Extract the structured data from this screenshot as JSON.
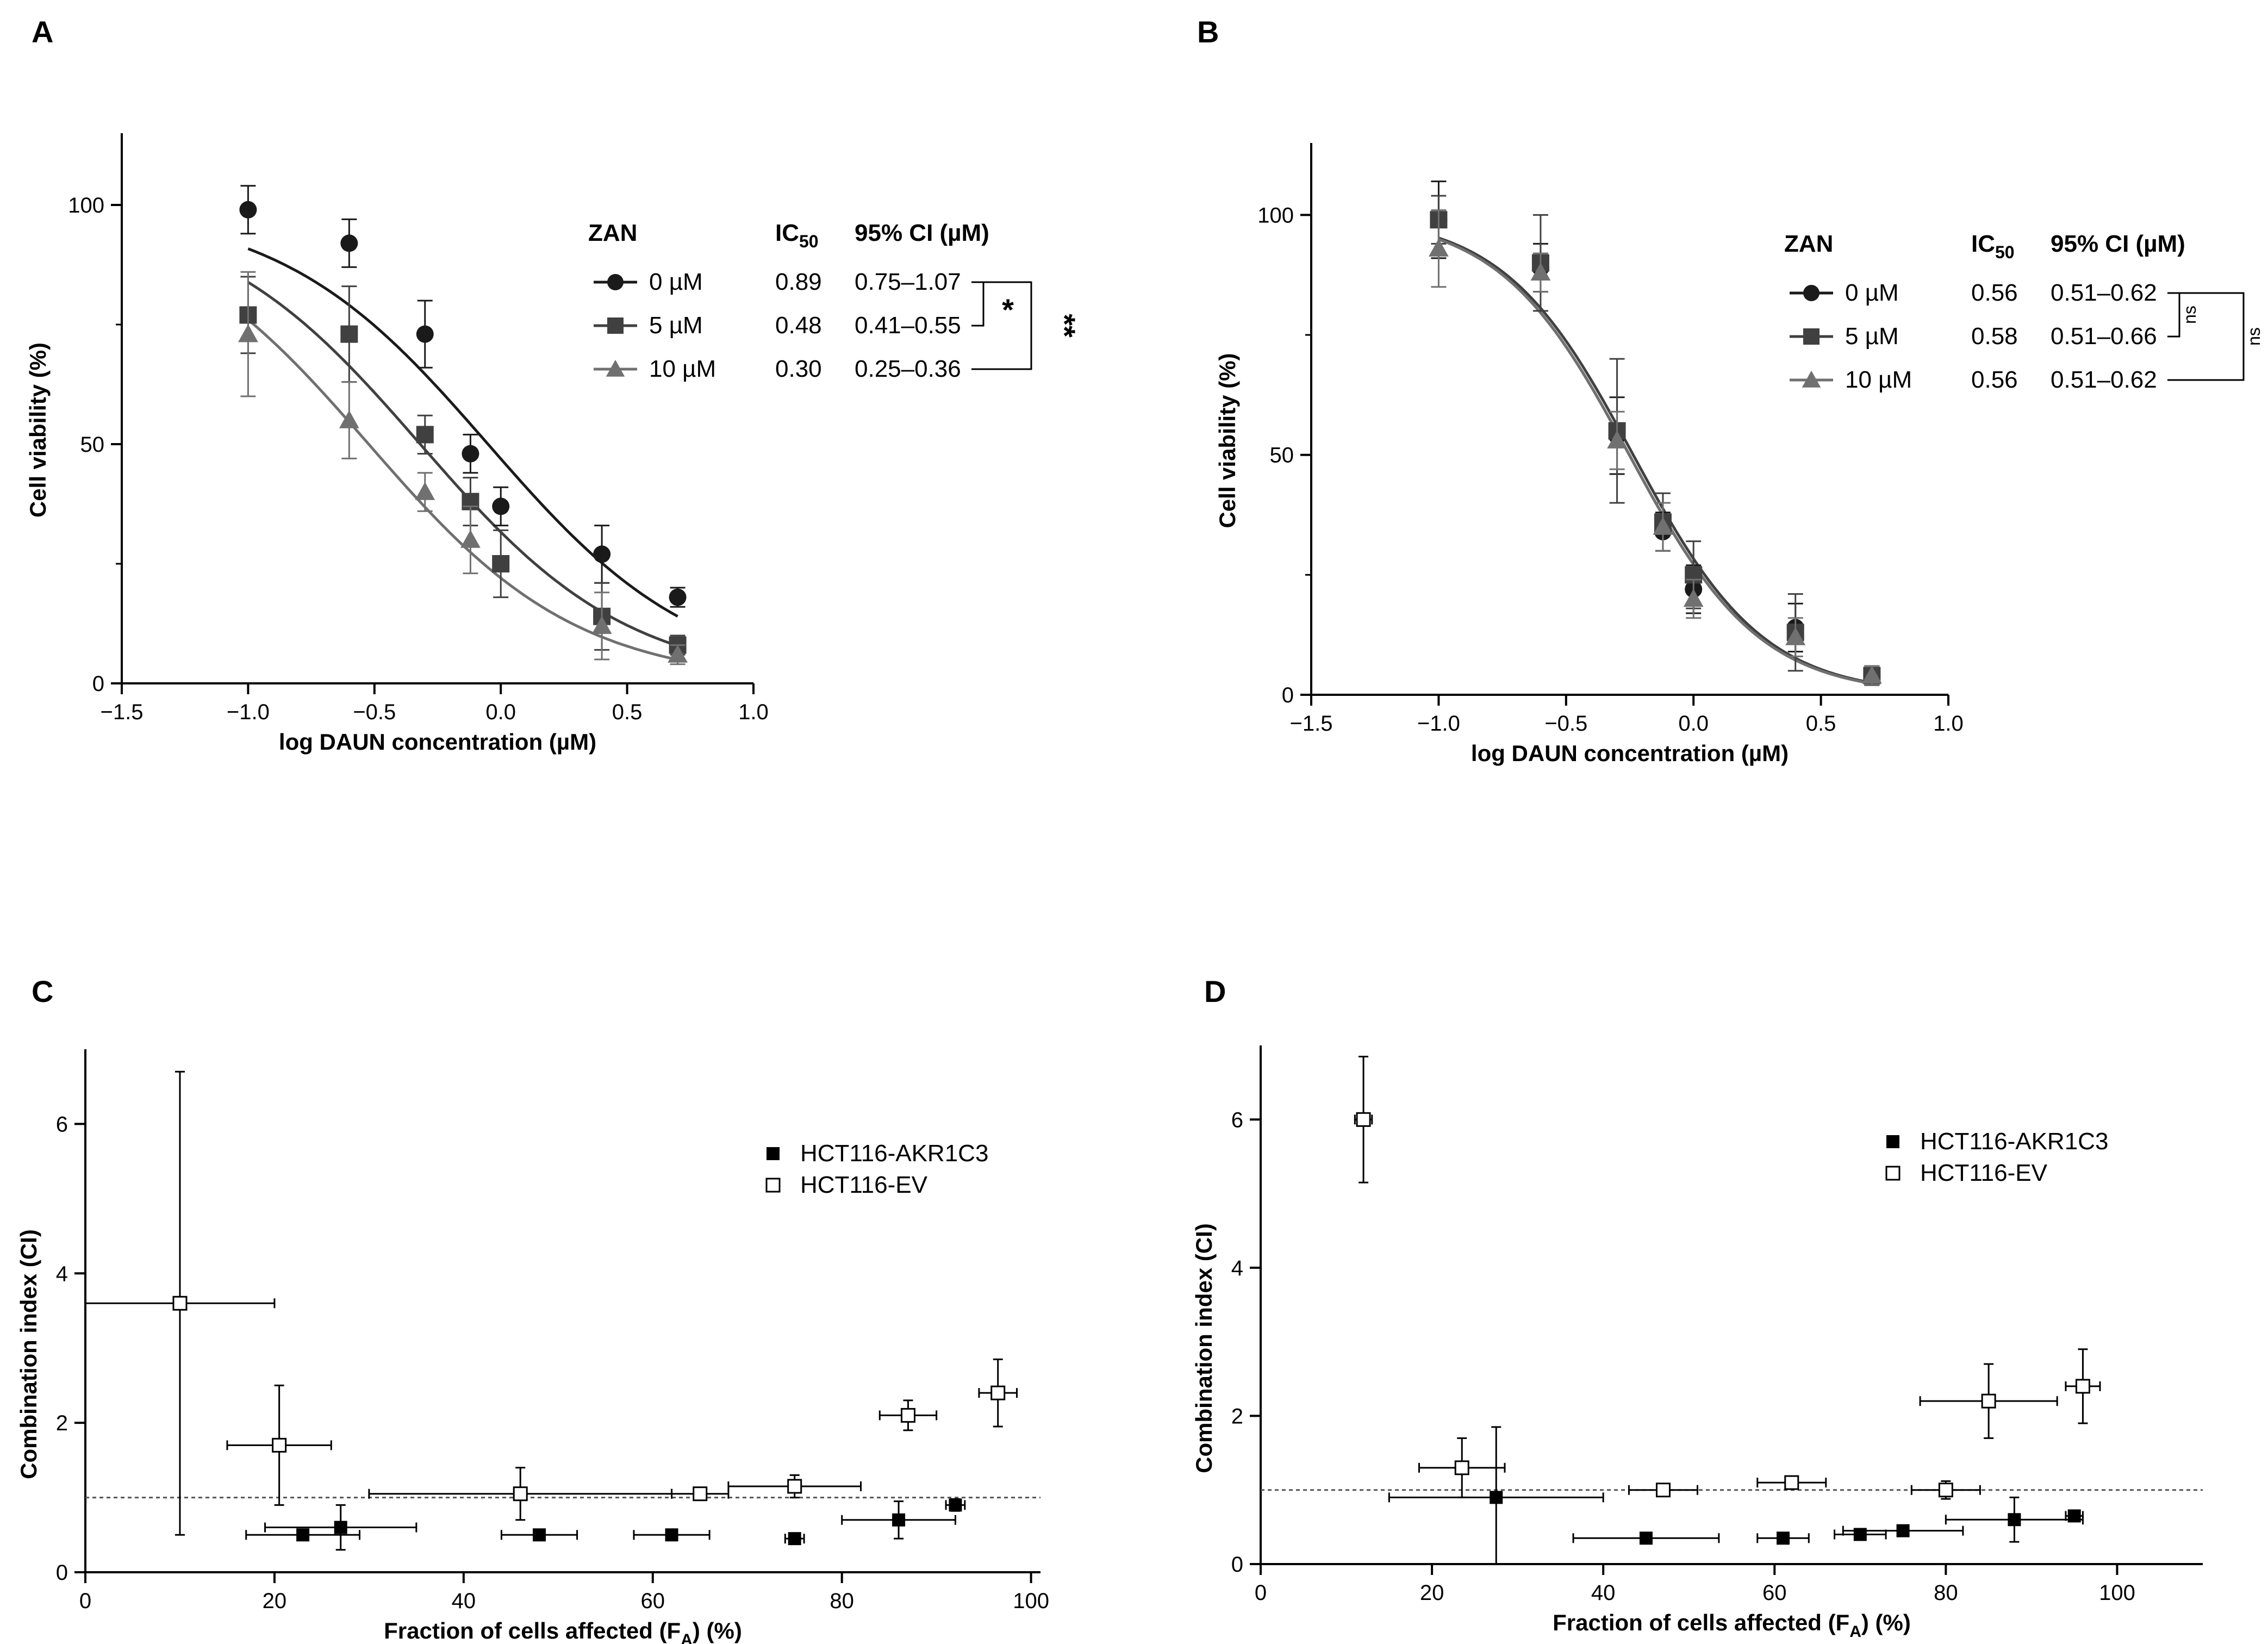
{
  "chart_data": [
    {
      "panel": "A",
      "type": "scatter",
      "xlabel": "log DAUN concentration (µM)",
      "ylabel": "Cell viability (%)",
      "xlim": [
        -1.5,
        1.0
      ],
      "ylim": [
        0,
        115
      ],
      "xticks": [
        "−1.5",
        "−1.0",
        "−0.5",
        "0.0",
        "0.5",
        "1.0"
      ],
      "yticks": [
        "0",
        "50",
        "100"
      ],
      "table_header": {
        "col1": "ZAN",
        "col2": "IC",
        "col2_sub": "50",
        "col3": "95% CI (µM)"
      },
      "significance": {
        "inner": "*",
        "outer": "**"
      },
      "series": [
        {
          "name": "0 µM",
          "ic50": "0.89",
          "ci": "0.75–1.07",
          "marker": "circle",
          "color": "#1a1a1a",
          "x": [
            -1.0,
            -0.6,
            -0.3,
            -0.12,
            0.0,
            0.4,
            0.7
          ],
          "y": [
            99,
            92,
            73,
            48,
            37,
            27,
            18
          ],
          "err": [
            5,
            5,
            7,
            4,
            4,
            6,
            2
          ],
          "ic50_value": 0.89,
          "hill": 1.05
        },
        {
          "name": "5 µM",
          "ic50": "0.48",
          "ci": "0.41–0.55",
          "marker": "square",
          "color": "#404040",
          "x": [
            -1.0,
            -0.6,
            -0.3,
            -0.12,
            0.0,
            0.4,
            0.7
          ],
          "y": [
            77,
            73,
            52,
            38,
            25,
            14,
            8
          ],
          "err": [
            8,
            10,
            4,
            5,
            7,
            7,
            2
          ],
          "ic50_value": 0.48,
          "hill": 1.05
        },
        {
          "name": "10 µM",
          "ic50": "0.30",
          "ci": "0.25–0.36",
          "marker": "triangle",
          "color": "#707070",
          "x": [
            -1.0,
            -0.6,
            -0.3,
            -0.12,
            0.4,
            0.7
          ],
          "y": [
            73,
            55,
            40,
            30,
            12,
            6
          ],
          "err": [
            13,
            8,
            4,
            7,
            7,
            2
          ],
          "ic50_value": 0.3,
          "hill": 1.05
        }
      ]
    },
    {
      "panel": "B",
      "type": "scatter",
      "xlabel": "log DAUN concentration (µM)",
      "ylabel": "Cell viability (%)",
      "xlim": [
        -1.5,
        1.0
      ],
      "ylim": [
        0,
        115
      ],
      "xticks": [
        "−1.5",
        "−1.0",
        "−0.5",
        "0.0",
        "0.5",
        "1.0"
      ],
      "yticks": [
        "0",
        "50",
        "100"
      ],
      "table_header": {
        "col1": "ZAN",
        "col2": "IC",
        "col2_sub": "50",
        "col3": "95% CI (µM)"
      },
      "significance": {
        "inner": "ns",
        "outer": "ns"
      },
      "series": [
        {
          "name": "0 µM",
          "ic50": "0.56",
          "ci": "0.51–0.62",
          "marker": "circle",
          "color": "#1a1a1a",
          "x": [
            -1.0,
            -0.6,
            -0.3,
            -0.12,
            0.0,
            0.4,
            0.7
          ],
          "y": [
            99,
            89,
            54,
            34,
            22,
            14,
            4
          ],
          "err": [
            8,
            5,
            8,
            4,
            5,
            5,
            2
          ],
          "ic50_value": 0.56,
          "hill": 1.7
        },
        {
          "name": "5 µM",
          "ic50": "0.58",
          "ci": "0.51–0.66",
          "marker": "square",
          "color": "#404040",
          "x": [
            -1.0,
            -0.6,
            -0.3,
            -0.12,
            0.0,
            0.4,
            0.7
          ],
          "y": [
            99,
            90,
            55,
            36,
            25,
            13,
            4
          ],
          "err": [
            5,
            10,
            15,
            6,
            7,
            8,
            2
          ],
          "ic50_value": 0.58,
          "hill": 1.7
        },
        {
          "name": "10 µM",
          "ic50": "0.56",
          "ci": "0.51–0.62",
          "marker": "triangle",
          "color": "#707070",
          "x": [
            -1.0,
            -0.6,
            -0.3,
            -0.12,
            0.0,
            0.4,
            0.7
          ],
          "y": [
            93,
            88,
            53,
            35,
            20,
            12,
            4
          ],
          "err": [
            8,
            4,
            6,
            5,
            4,
            4,
            2
          ],
          "ic50_value": 0.56,
          "hill": 1.7
        }
      ]
    },
    {
      "panel": "C",
      "type": "scatter",
      "xlabel": "Fraction of cells affected (F",
      "xlabel_sub": "A",
      "xlabel_tail": ") (%)",
      "ylabel": "Combination index (CI)",
      "xlim": [
        0,
        101
      ],
      "ylim": [
        0,
        7
      ],
      "xticks": [
        "0",
        "20",
        "40",
        "60",
        "80",
        "100"
      ],
      "yticks": [
        "0",
        "2",
        "4",
        "6"
      ],
      "reference_line": 1,
      "series": [
        {
          "name": "HCT116-AKR1C3",
          "marker": "filled-square",
          "x": [
            23,
            27,
            48,
            62,
            75,
            86,
            92
          ],
          "y": [
            0.5,
            0.6,
            0.5,
            0.5,
            0.45,
            0.7,
            0.9
          ],
          "xerr": [
            6,
            8,
            4,
            4,
            1,
            6,
            1
          ],
          "yerr": [
            0.05,
            0.3,
            0.05,
            0.05,
            0.05,
            0.25,
            0.08
          ]
        },
        {
          "name": "HCT116-EV",
          "marker": "open-square",
          "x": [
            10,
            20.5,
            46,
            65,
            75,
            87,
            96.5
          ],
          "y": [
            3.6,
            1.7,
            1.05,
            1.05,
            1.15,
            2.1,
            2.4
          ],
          "xerr": [
            10,
            5.5,
            16,
            3,
            7,
            3,
            2
          ],
          "yerr": [
            3.1,
            0.8,
            0.35,
            0.08,
            0.15,
            0.2,
            0.45
          ]
        }
      ]
    },
    {
      "panel": "D",
      "type": "scatter",
      "xlabel": "Fraction of cells affected (F",
      "xlabel_sub": "A",
      "xlabel_tail": ") (%)",
      "ylabel": "Combination index (CI)",
      "xlim": [
        0,
        110
      ],
      "ylim": [
        0,
        7
      ],
      "xticks": [
        "0",
        "20",
        "40",
        "60",
        "80",
        "100"
      ],
      "yticks": [
        "0",
        "2",
        "4",
        "6"
      ],
      "reference_line": 1,
      "series": [
        {
          "name": "HCT116-AKR1C3",
          "marker": "filled-square",
          "x": [
            27.5,
            45,
            61,
            70,
            75,
            88,
            95
          ],
          "y": [
            0.9,
            0.35,
            0.35,
            0.4,
            0.45,
            0.6,
            0.65
          ],
          "xerr": [
            12.5,
            8.5,
            3,
            3,
            7,
            8,
            1
          ],
          "yerr": [
            0.95,
            0.05,
            0.05,
            0.05,
            0.05,
            0.3,
            0.05
          ]
        },
        {
          "name": "HCT116-EV",
          "marker": "open-square",
          "x": [
            12,
            23.5,
            47,
            62,
            80,
            85,
            96
          ],
          "y": [
            6.0,
            1.3,
            1.0,
            1.1,
            1.0,
            2.2,
            2.4
          ],
          "xerr": [
            1,
            5,
            4,
            4,
            4,
            8,
            2
          ],
          "yerr": [
            0.85,
            0.4,
            0.05,
            0.05,
            0.12,
            0.5,
            0.5
          ]
        }
      ]
    }
  ]
}
